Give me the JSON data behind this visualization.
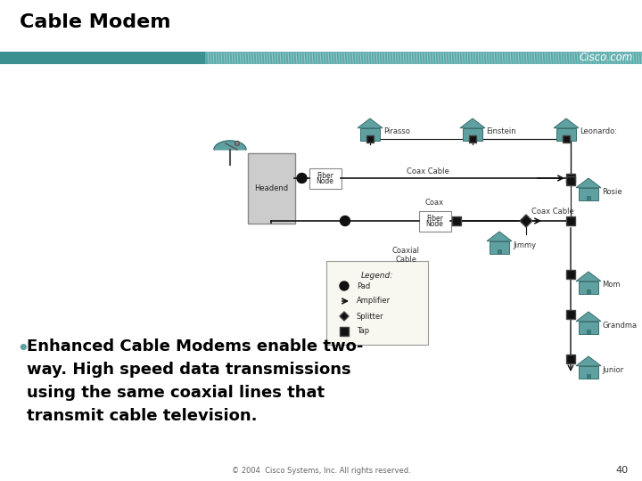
{
  "title": "Cable Modem",
  "bg_color": "#ffffff",
  "title_color": "#000000",
  "header_bar_left_color": "#4a9898",
  "header_bar_right_color": "#6ab0b0",
  "cisco_text": "Cisco.com",
  "footer_text": "© 2004  Cisco Systems, Inc. All rights reserved.",
  "page_number": "40",
  "house_color": "#5fa0a0",
  "house_edge_color": "#3a7070",
  "line_color": "#111111",
  "symbol_color": "#111111",
  "headend_box_color": "#cccccc",
  "headend_box_edge": "#888888",
  "fn_box_color": "#ffffff",
  "fn_box_edge": "#888888",
  "legend_box_color": "#f8f8f0",
  "legend_box_edge": "#999999",
  "dish_color": "#5fa0a0",
  "label_color": "#333333",
  "bullet_color": "#5fa0a0",
  "title_fontsize": 16,
  "body_fontsize": 13,
  "diagram_label_fontsize": 6,
  "legend_fontsize": 6,
  "footer_fontsize": 6,
  "page_num_fontsize": 8
}
